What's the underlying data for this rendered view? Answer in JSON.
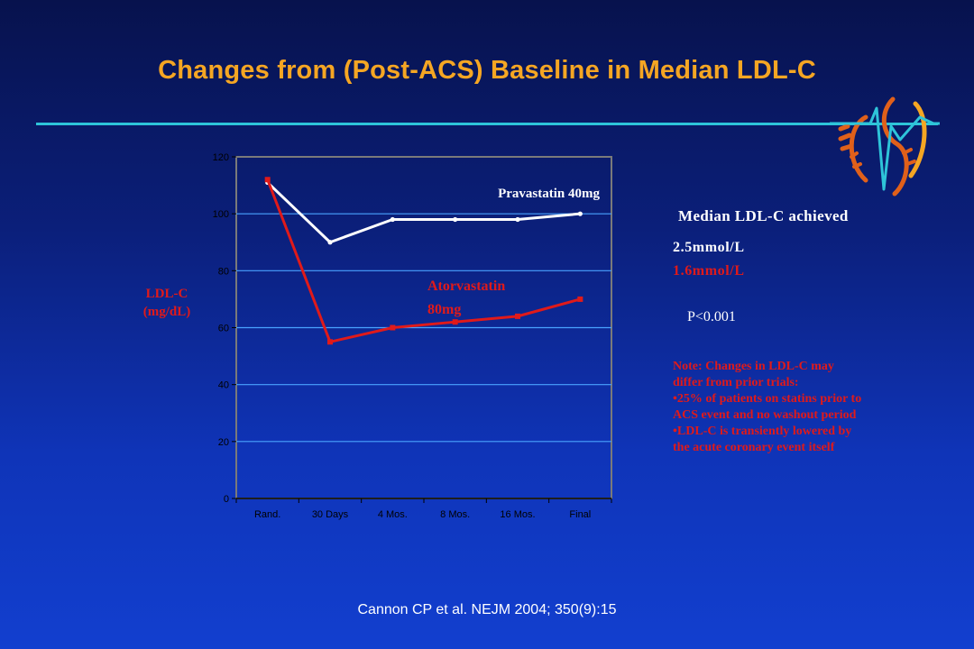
{
  "title": "Changes from (Post-ACS) Baseline in Median LDL-C",
  "citation": "Cannon CP  et al. NEJM 2004; 350(9):15",
  "colors": {
    "title": "#f5a623",
    "rule": "#2ec4d9",
    "pravastatin": "#ffffff",
    "atorvastatin": "#e01a1a",
    "gridline": "#4aa3ff"
  },
  "side_panel": {
    "median_title": "Median LDL-C achieved",
    "pravastatin_value": "2.5mmol/L",
    "atorvastatin_value": "1.6mmol/L",
    "p_value": "P<0.001",
    "note_lines": [
      "Note: Changes in LDL-C may",
      "differ from prior trials:",
      "•25% of patients on statins prior to",
      "ACS event and no washout period",
      "•LDL-C is transiently lowered by",
      "the acute coronary event itself"
    ]
  },
  "logo": {
    "icon": "heart-ecg-logo-icon"
  },
  "chart_data": {
    "type": "line",
    "title": "",
    "xlabel": "",
    "ylabel_lines": [
      "LDL-C",
      "(mg/dL)"
    ],
    "categories": [
      "Rand.",
      "30 Days",
      "4 Mos.",
      "8 Mos.",
      "16 Mos.",
      "Final"
    ],
    "ylim": [
      0,
      120
    ],
    "yticks": [
      0,
      20,
      40,
      60,
      80,
      100,
      120
    ],
    "grid": true,
    "series": [
      {
        "name": "Pravastatin 40mg",
        "values": [
          111,
          90,
          98,
          98,
          98,
          100
        ],
        "color": "#ffffff"
      },
      {
        "name": "Atorvastatin 80mg",
        "label_lines": [
          "Atorvastatin",
          "80mg"
        ],
        "values": [
          112,
          55,
          60,
          62,
          64,
          70
        ],
        "color": "#e01a1a"
      }
    ]
  }
}
